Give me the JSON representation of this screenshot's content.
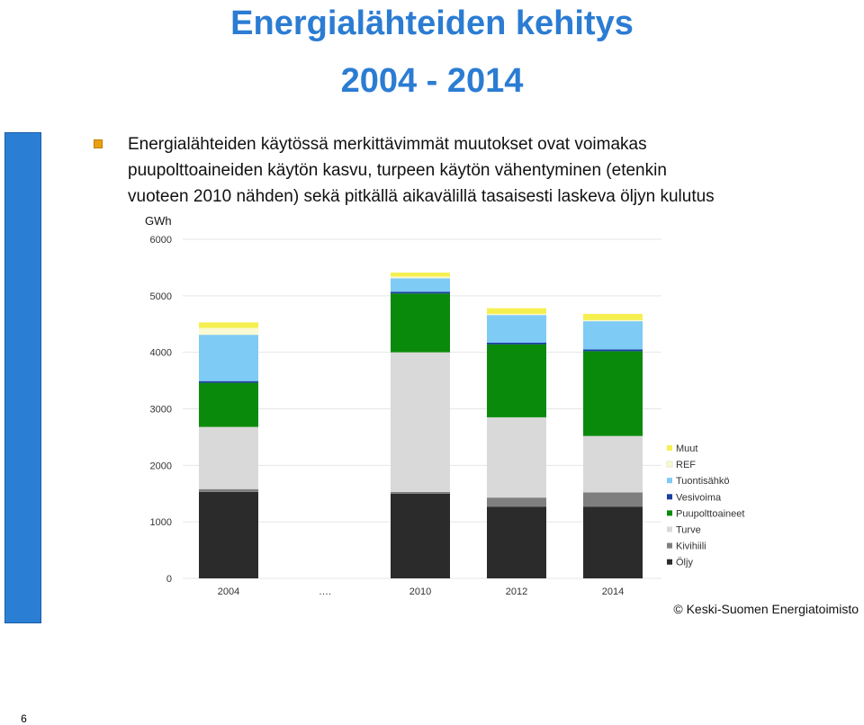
{
  "slide": {
    "number": "6",
    "title_line1": "Energialähteiden kehitys",
    "title_line2": "2004 - 2014",
    "body_lines": [
      "Energialähteiden käytössä merkittävimmät muutokset ovat voimakas",
      "puupolttoaineiden käytön kasvu, turpeen käytön vähentyminen (etenkin",
      "vuoteen 2010 nähden) sekä pitkällä aikavälillä tasaisesti laskeva öljyn kulutus"
    ],
    "credit": "© Keski-Suomen Energiatoimisto",
    "bullet_color": "#e8a010",
    "title_color": "#2b7cd3"
  },
  "chart_data": {
    "type": "bar",
    "stacked": true,
    "ylabel": "GWh",
    "ylim": [
      0,
      6000
    ],
    "yticks": [
      "0",
      "1000",
      "2000",
      "3000",
      "4000",
      "5000",
      "6000"
    ],
    "categories": [
      "2004",
      "….",
      "2010",
      "2012",
      "2014"
    ],
    "grid": true,
    "legend_position": "right",
    "series": [
      {
        "name": "Öljy",
        "color": "#2b2b2b",
        "values": [
          1530,
          null,
          1500,
          1270,
          1270
        ]
      },
      {
        "name": "Kivihiili",
        "color": "#7f7f7f",
        "values": [
          50,
          null,
          30,
          160,
          250
        ]
      },
      {
        "name": "Turve",
        "color": "#d9d9d9",
        "values": [
          1100,
          null,
          2470,
          1420,
          1000
        ]
      },
      {
        "name": "Puupolttoaineet",
        "color": "#0a8a0a",
        "values": [
          780,
          null,
          1040,
          1290,
          1500
        ]
      },
      {
        "name": "Vesivoima",
        "color": "#1a3fa0",
        "values": [
          30,
          null,
          30,
          30,
          30
        ]
      },
      {
        "name": "Tuontisähkö",
        "color": "#7ecbf5",
        "values": [
          820,
          null,
          240,
          490,
          500
        ]
      },
      {
        "name": "REF",
        "color": "#fafad2",
        "values": [
          120,
          null,
          30,
          20,
          20
        ]
      },
      {
        "name": "Muut",
        "color": "#f5f050",
        "values": [
          100,
          null,
          70,
          100,
          110
        ]
      }
    ]
  }
}
